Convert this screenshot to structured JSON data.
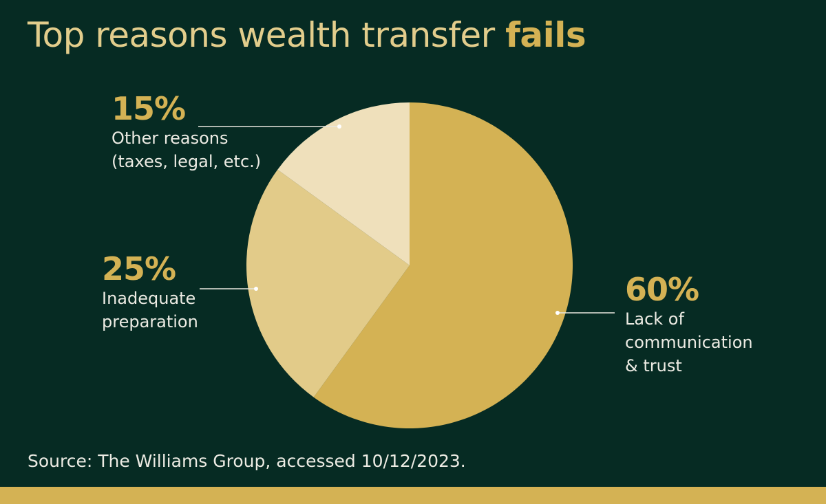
{
  "title": {
    "text": "Top reasons wealth transfer ",
    "emphasis": "fails"
  },
  "source": "Source: The Williams Group, accessed 10/12/2023.",
  "colors": {
    "background": "#062b23",
    "accent": "#d4b254"
  },
  "chart_data": {
    "type": "pie",
    "title": "Top reasons wealth transfer fails",
    "slices": [
      {
        "value": 60,
        "pct_label": "60%",
        "label": "Lack of\ncommunication\n& trust",
        "color": "#d4b254"
      },
      {
        "value": 25,
        "pct_label": "25%",
        "label": "Inadequate\npreparation",
        "color": "#e2cb89"
      },
      {
        "value": 15,
        "pct_label": "15%",
        "label": "Other reasons\n(taxes, legal, etc.)",
        "color": "#efe0bb"
      }
    ],
    "start": "top",
    "direction": "clockwise"
  }
}
